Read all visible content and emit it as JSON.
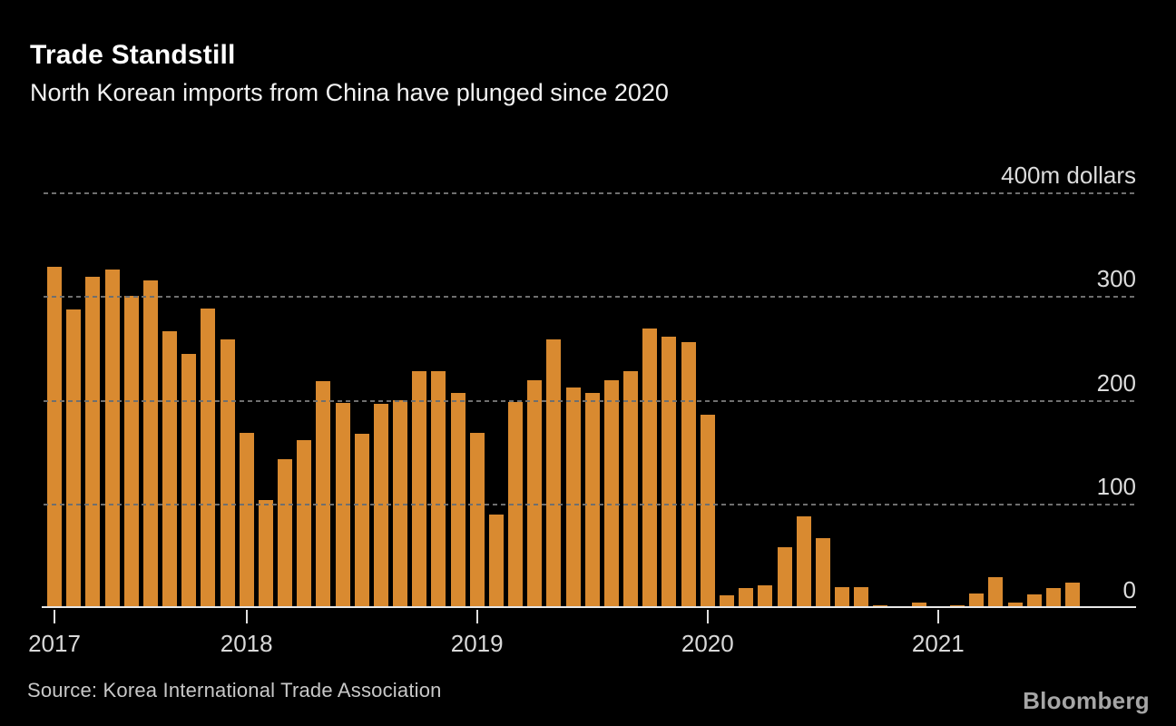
{
  "header": {
    "title": "Trade Standstill",
    "subtitle": "North Korean imports from China have plunged since 2020"
  },
  "chart_data": {
    "type": "bar",
    "title": "Trade Standstill",
    "subtitle": "North Korean imports from China have plunged since 2020",
    "unit": "m dollars",
    "frequency": "monthly",
    "ylim": [
      0,
      400
    ],
    "grid": {
      "style": "dashed-horizontal",
      "color": "#6f6f6f",
      "drawn_over_bars": true
    },
    "bar_color": "#d98a30",
    "y_ticks": [
      {
        "value": 400,
        "label": "400m dollars"
      },
      {
        "value": 300,
        "label": "300"
      },
      {
        "value": 200,
        "label": "200"
      },
      {
        "value": 100,
        "label": "100"
      },
      {
        "value": 0,
        "label": "0"
      }
    ],
    "x_tick_years": [
      "2017",
      "2018",
      "2019",
      "2020",
      "2021"
    ],
    "groups": [
      {
        "year": "2017",
        "values": [
          328,
          287,
          319,
          326,
          300,
          315,
          266,
          244,
          288,
          258
        ]
      },
      {
        "year": "2018",
        "values": [
          168,
          103,
          143,
          161,
          218,
          197,
          167,
          196,
          200,
          228,
          228,
          207
        ]
      },
      {
        "year": "2019",
        "values": [
          168,
          89,
          198,
          219,
          258,
          212,
          207,
          219,
          228,
          269,
          261,
          256
        ]
      },
      {
        "year": "2020",
        "values": [
          186,
          11,
          18,
          21,
          58,
          88,
          67,
          19,
          19,
          2,
          1,
          4
        ]
      },
      {
        "year": "2021",
        "values": [
          1,
          2,
          13,
          29,
          4,
          12,
          18,
          24
        ]
      }
    ]
  },
  "footer": {
    "source": "Source: Korea International Trade Association",
    "brand": "Bloomberg"
  }
}
